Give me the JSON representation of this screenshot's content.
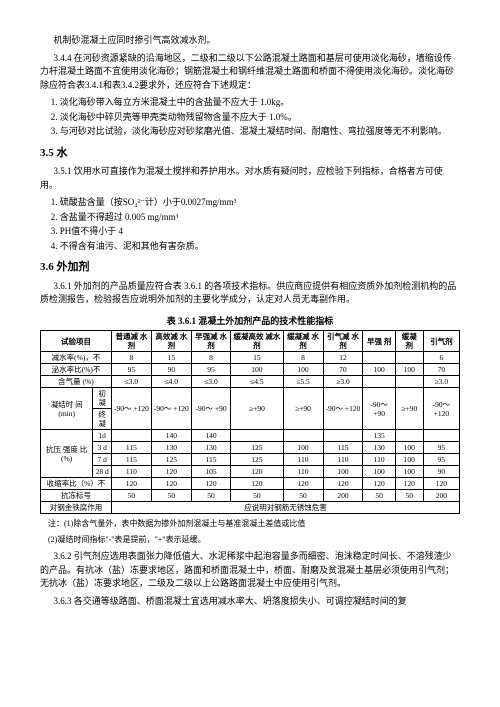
{
  "intro_line": "机制砂混凝土应同时掺引气高效减水剂。",
  "p344": "3.4.4  在河砂资源紧缺的沿海地区，二级和二级以下公路混凝土路面和基层可使用淡化海砂，墙缩设传力杆混凝土路面不宜使用淡化海砂；钢筋混凝土和钢纤维混凝土路面和桥面不得使用淡化海砂。淡化海砂除应符合表3.4.1和表3.4.2要求外，还应符合下述规定：",
  "list344": [
    "淡化海砂带入每立方米混凝土中的含盐量不应大于 1.0kg。",
    "淡化海砂中碎贝壳等甲壳类动物残留物含量不应大于 1.0%。",
    "与河砂对比试验，淡化海砂应对砂浆磨光值、混凝土凝结时间、耐磨性、弯拉强度等无不利影响。"
  ],
  "h35": "3.5 水",
  "p351": "3.5.1  饮用水可直接作为混凝土搅拌和养护用水。对水质有疑问时，应检验下列指标，合格者方可使用。",
  "list351": [
    "硫酸盐含量（按SO₄²⁻计）小于0.0027mg/mm³",
    "含盐量不得超过 0.005 mg/mm³",
    "PH值不得小于 4",
    "不得含有油污、泥和其他有害杂质。"
  ],
  "h36": "3.6 外加剂",
  "p361": "3.6.1  外加剂的产品质量应符合表 3.6.1 的各项技术指标。供应商应提供有相应资质外加剂检测机构的品质检测报告，检验报告应说明外加剂的主要化学成分，认定对人员无毒副作用。",
  "table_title": "表 3.6.1 混凝土外加剂产品的技术性能指标",
  "thead": {
    "c0": "试验项目",
    "c1": "普通减\n水剂",
    "c2": "高效减\n水剂",
    "c3": "早强减\n水剂",
    "c4": "缓凝高效\n减水剂",
    "c5": "缓凝减\n水剂",
    "c6": "引气减\n水剂",
    "c7": "早强\n剂",
    "c8": "缓凝\n剂",
    "c9": "引气剂"
  },
  "rows": {
    "r1": {
      "label": "减水率(%)，不",
      "v": [
        "8",
        "15",
        "8",
        "15",
        "8",
        "12",
        "",
        "",
        "6"
      ]
    },
    "r2": {
      "label": "泌水率比(%)不",
      "v": [
        "95",
        "90",
        "95",
        "100",
        "100",
        "70",
        "100",
        "100",
        "70"
      ]
    },
    "r3": {
      "label": "含气量\n(%)",
      "v": [
        "≤3.0",
        "≤4.0",
        "≤3.0",
        "≤4.5",
        "≤5.5",
        "≥3.0",
        "",
        "",
        "≥3.0"
      ]
    },
    "r4": {
      "label": "凝结时\n间(min)",
      "sub1": "初凝",
      "sub2": "终凝",
      "v1": [
        "-90～\n+120",
        "-90～\n+120",
        "-90～\n+90",
        "≥+90",
        "≥+90",
        "-90～\n+120",
        "-90～\n+90",
        "≥+90",
        "-90～\n+120"
      ]
    },
    "r5": {
      "label": "抗压\n强度\n比\n(%)",
      "s1": "1d",
      "s1v": [
        "",
        "140",
        "140",
        "",
        "",
        "",
        "135",
        "",
        ""
      ],
      "s2": "3 d",
      "s2v": [
        "115",
        "130",
        "130",
        "125",
        "100",
        "115",
        "130",
        "100",
        "95"
      ],
      "s3": "7 d",
      "s3v": [
        "115",
        "125",
        "115",
        "125",
        "110",
        "110",
        "110",
        "100",
        "95"
      ],
      "s4": "28 d",
      "s4v": [
        "110",
        "120",
        "105",
        "120",
        "110",
        "100",
        "100",
        "100",
        "90"
      ]
    },
    "r6": {
      "label": "收缩率比（%）不",
      "v": [
        "120",
        "120",
        "120",
        "120",
        "120",
        "120",
        "120",
        "120",
        "120"
      ]
    },
    "r7": {
      "label": "抗冻标号",
      "v": [
        "50",
        "50",
        "50",
        "50",
        "50",
        "200",
        "50",
        "50",
        "200"
      ]
    },
    "r8": {
      "label": "对钢金铁腐作用",
      "merged": "应说明对钢筋无锈蚀危害"
    }
  },
  "note1": "注：(1)除含气量外，表中数据为掺外加剂混凝土与基准混凝土差值或比值",
  "note2": "(2)凝结时间指标\"-\"表是提前，\"+\"表示延缓。",
  "p362": "3.6.2  引气剂应选用表面张力降低值大、水泥稀浆中起泡容量多而细密、泡沫稳定时间长、不溶残渣少的产品。有抗冰（盐）冻要求地区，路面和桥面混凝土中，桥面、耐磨及贫混凝土基层必须使用引气剂；无抗冰（盐）冻要求地区，二级及二级以上公路路面混凝土中应使用引气剂。",
  "p363": "3.6.3  各交通等级路面、桥面混凝土宜选用减水率大、坍落度损失小、可调控凝结时间的复"
}
